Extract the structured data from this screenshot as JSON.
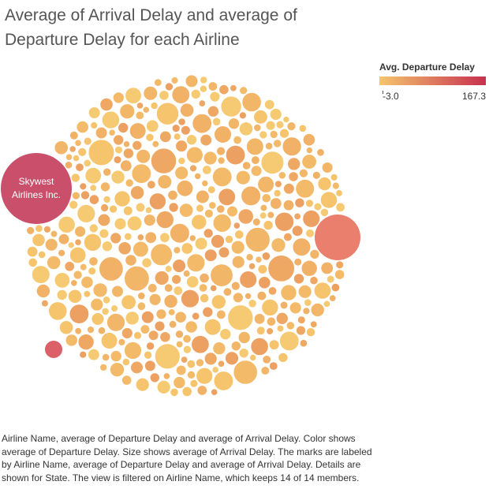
{
  "title": "Average of Arrival Delay and average of Departure Delay for each Airline",
  "legend": {
    "title": "Avg. Departure Delay",
    "min_label": "-3.0",
    "max_label": "167.3",
    "color_low": "#f5c56e",
    "color_high": "#c8304f"
  },
  "caption": "Airline Name, average of Departure Delay and average of Arrival Delay.  Color shows average of Departure Delay.  Size shows average of Arrival Delay.  The marks are labeled by Airline Name, average of Departure Delay and average of Arrival Delay.  Details are shown for State. The view is filtered on Airline Name, which keeps 14 of 14 members.",
  "chart_data": {
    "type": "bubble",
    "title": "Average of Arrival Delay and average of Departure Delay for each Airline",
    "color_encoding": "Avg. Departure Delay",
    "size_encoding": "Avg. Arrival Delay",
    "color_range": [
      -3.0,
      167.3
    ],
    "filter_note": "keeps 14 of 14 members",
    "labeled_marks": [
      {
        "label": "Skywest Airlines Inc.",
        "departure_delay": 160,
        "color": "#c94f6b"
      }
    ],
    "highlight_marks": [
      {
        "departure_delay": 95,
        "color": "#eb7f6d"
      },
      {
        "departure_delay": 120,
        "color": "#dc6068"
      }
    ]
  }
}
